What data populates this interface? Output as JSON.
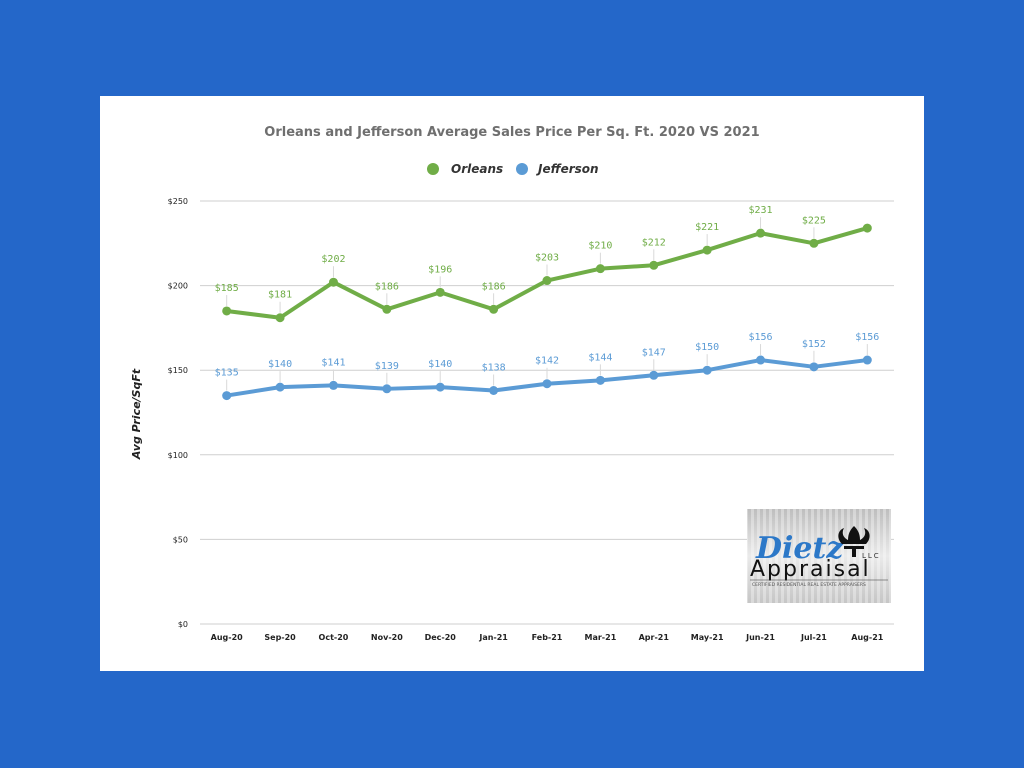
{
  "colors": {
    "background": "#2467c9",
    "card": "#ffffff",
    "orleans": "#70ad47",
    "jefferson": "#5b9bd5",
    "logo_blue": "#2c78c8"
  },
  "chart_data": {
    "type": "line",
    "title": "Orleans and Jefferson Average Sales Price Per Sq. Ft. 2020 VS 2021",
    "xlabel": "",
    "ylabel": "Avg Price/SqFt",
    "ylim": [
      0,
      250
    ],
    "yticks": [
      0,
      50,
      100,
      150,
      200,
      250
    ],
    "ytick_labels": [
      "$0",
      "$50",
      "$100",
      "$150",
      "$200",
      "$250"
    ],
    "grid": true,
    "legend_position": "top",
    "categories": [
      "Aug-20",
      "Sep-20",
      "Oct-20",
      "Nov-20",
      "Dec-20",
      "Jan-21",
      "Feb-21",
      "Mar-21",
      "Apr-21",
      "May-21",
      "Jun-21",
      "Jul-21",
      "Aug-21"
    ],
    "series": [
      {
        "name": "Orleans",
        "color": "#70ad47",
        "values": [
          185,
          181,
          202,
          186,
          196,
          186,
          203,
          210,
          212,
          221,
          231,
          225,
          234
        ],
        "labels": [
          "$185",
          "$181",
          "$202",
          "$186",
          "$196",
          "$186",
          "$203",
          "$210",
          "$212",
          "$221",
          "$231",
          "$225",
          ""
        ]
      },
      {
        "name": "Jefferson",
        "color": "#5b9bd5",
        "values": [
          135,
          140,
          141,
          139,
          140,
          138,
          142,
          144,
          147,
          150,
          156,
          152,
          156
        ],
        "labels": [
          "$135",
          "$140",
          "$141",
          "$139",
          "$140",
          "$138",
          "$142",
          "$144",
          "$147",
          "$150",
          "$156",
          "$152",
          "$156"
        ]
      }
    ]
  },
  "logo": {
    "name": "Dietz",
    "word": "Appraisal",
    "suffix": "LLC",
    "tagline": "CERTIFIED RESIDENTIAL REAL ESTATE APPRAISERS"
  }
}
